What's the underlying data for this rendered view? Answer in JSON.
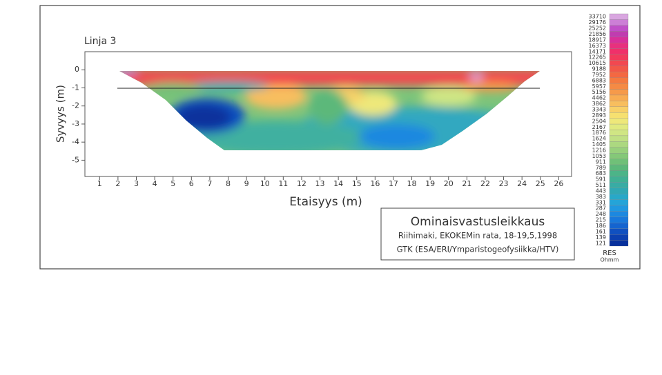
{
  "chart_data": {
    "type": "contour",
    "title": "Linja 3",
    "x_label": "Etaisyys (m)",
    "y_label": "Syvyys (m)",
    "xlim": [
      0.2,
      26.7
    ],
    "ylim": [
      -5.9,
      1
    ],
    "xticks": [
      1,
      2,
      3,
      4,
      5,
      6,
      7,
      8,
      9,
      10,
      11,
      12,
      13,
      14,
      15,
      16,
      17,
      18,
      19,
      20,
      21,
      22,
      23,
      24,
      25,
      26
    ],
    "yticks": [
      0,
      -1,
      -2,
      -3,
      -4,
      -5
    ],
    "colorbar": {
      "title": "RES",
      "unit": "Ohmm",
      "levels": [
        33710,
        29176,
        25252,
        21856,
        18917,
        16373,
        14171,
        12265,
        10615,
        9188,
        7952,
        6883,
        5957,
        5156,
        4462,
        3862,
        3343,
        2893,
        2504,
        2167,
        1876,
        1624,
        1405,
        1216,
        1053,
        911,
        789,
        683,
        591,
        511,
        443,
        383,
        331,
        287,
        248,
        215,
        186,
        161,
        139,
        121
      ],
      "colors": [
        "#d9a6e0",
        "#cc7fd6",
        "#c050c8",
        "#c03cb0",
        "#d8309a",
        "#e8307e",
        "#f0306a",
        "#f23a5c",
        "#f24850",
        "#f25848",
        "#f46842",
        "#f47a40",
        "#f58a44",
        "#f69a4a",
        "#f8ac52",
        "#f8be5e",
        "#f8d068",
        "#f6e070",
        "#eee87a",
        "#e0ea80",
        "#d0e684",
        "#c0e084",
        "#acd880",
        "#98d07c",
        "#84c878",
        "#70c078",
        "#5cb87a",
        "#4cb488",
        "#40b094",
        "#38aca4",
        "#30a8b4",
        "#28a8c8",
        "#24a4d8",
        "#2098e0",
        "#1c88e0",
        "#1878dc",
        "#1464d0",
        "#1050c0",
        "#0c40b0",
        "#08309c"
      ]
    }
  },
  "legend_box": {
    "title": "Ominaisvastusleikkaus",
    "line1": "Riihimaki, EKOKEMin rata, 18-19,5,1998",
    "line2": "GTK (ESA/ERI/Ymparistogeofysiikka/HTV)"
  }
}
